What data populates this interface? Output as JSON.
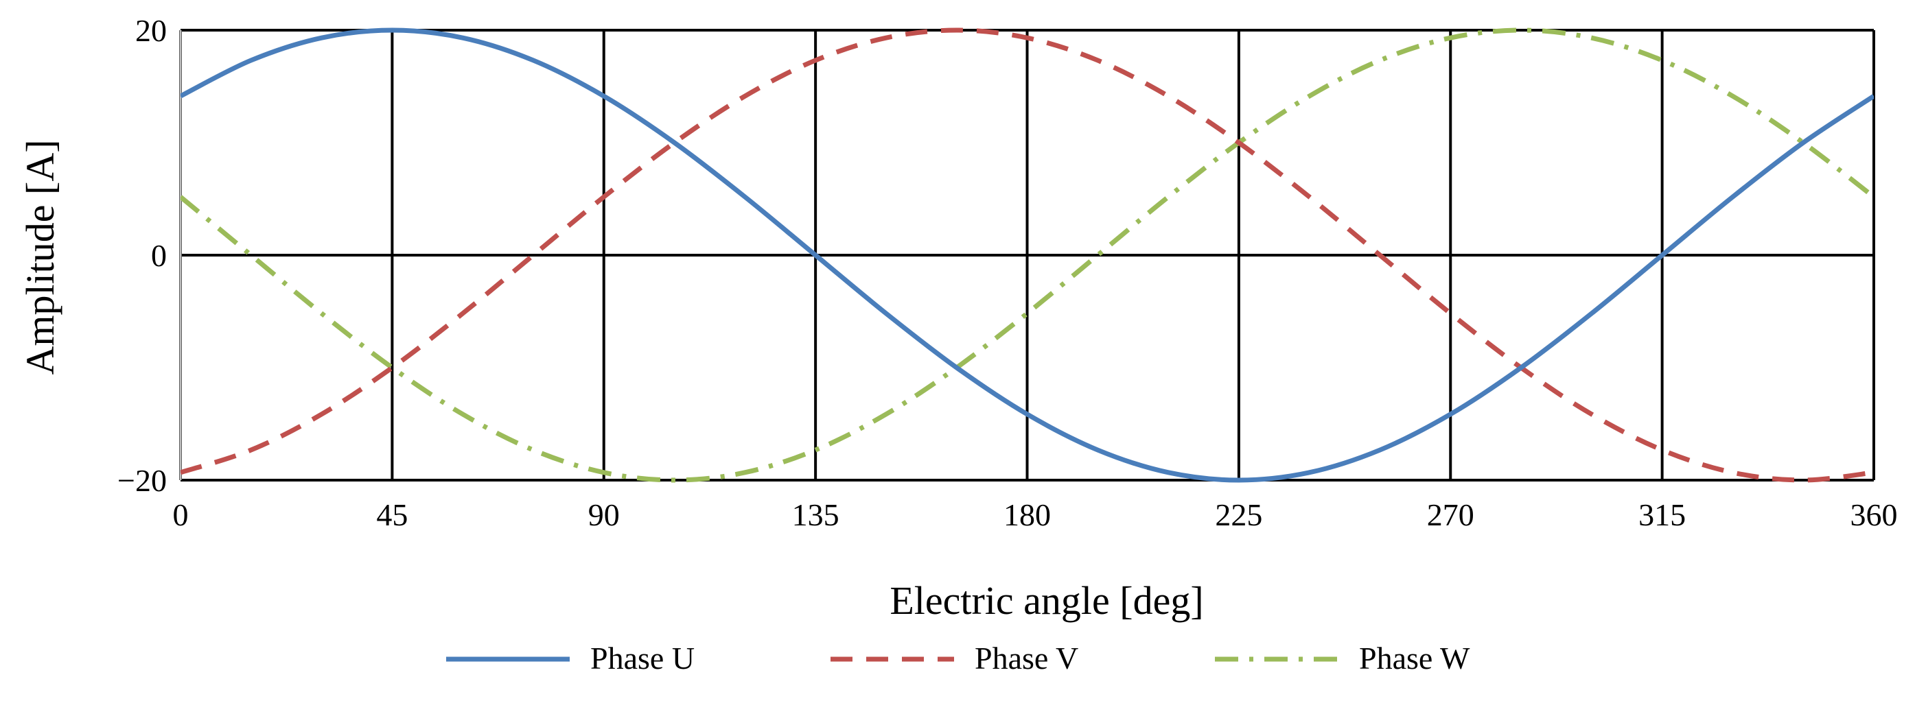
{
  "chart_data": {
    "type": "line",
    "title": "",
    "xlabel": "Electric angle [deg]",
    "ylabel": "Amplitude [A]",
    "xlim": [
      0,
      360
    ],
    "ylim": [
      -20,
      20
    ],
    "x_ticks": [
      0,
      45,
      90,
      135,
      180,
      225,
      270,
      315,
      360
    ],
    "y_ticks": [
      -20,
      0,
      20
    ],
    "x_tick_labels": [
      "0",
      "45",
      "90",
      "135",
      "180",
      "225",
      "270",
      "315",
      "360"
    ],
    "y_tick_labels": [
      "−20",
      "0",
      "20"
    ],
    "grid": true,
    "legend_position": "bottom",
    "x": [
      0,
      15,
      30,
      45,
      60,
      75,
      90,
      105,
      120,
      135,
      150,
      165,
      180,
      195,
      210,
      225,
      240,
      255,
      270,
      285,
      300,
      315,
      330,
      345,
      360
    ],
    "series": [
      {
        "name": "Phase U",
        "color": "#4a7ebb",
        "style": "solid",
        "values": [
          14.14,
          17.32,
          19.32,
          20.0,
          19.32,
          17.32,
          14.14,
          10.0,
          5.18,
          0.0,
          -5.18,
          -10.0,
          -14.14,
          -17.32,
          -19.32,
          -20.0,
          -19.32,
          -17.32,
          -14.14,
          -10.0,
          -5.18,
          0.0,
          5.18,
          10.0,
          14.14
        ]
      },
      {
        "name": "Phase V",
        "color": "#c0504d",
        "style": "dashed",
        "values": [
          -19.32,
          -17.32,
          -14.14,
          -10.0,
          -5.18,
          0.0,
          5.18,
          10.0,
          14.14,
          17.32,
          19.32,
          20.0,
          19.32,
          17.32,
          14.14,
          10.0,
          5.18,
          0.0,
          -5.18,
          -10.0,
          -14.14,
          -17.32,
          -19.32,
          -20.0,
          -19.32
        ]
      },
      {
        "name": "Phase W",
        "color": "#9bbb59",
        "style": "dash-dot",
        "values": [
          5.18,
          0.0,
          -5.18,
          -10.0,
          -14.14,
          -17.32,
          -19.32,
          -20.0,
          -19.32,
          -17.32,
          -14.14,
          -10.0,
          -5.18,
          0.0,
          5.18,
          10.0,
          14.14,
          17.32,
          19.32,
          20.0,
          19.32,
          17.32,
          14.14,
          10.0,
          5.18
        ]
      }
    ]
  }
}
